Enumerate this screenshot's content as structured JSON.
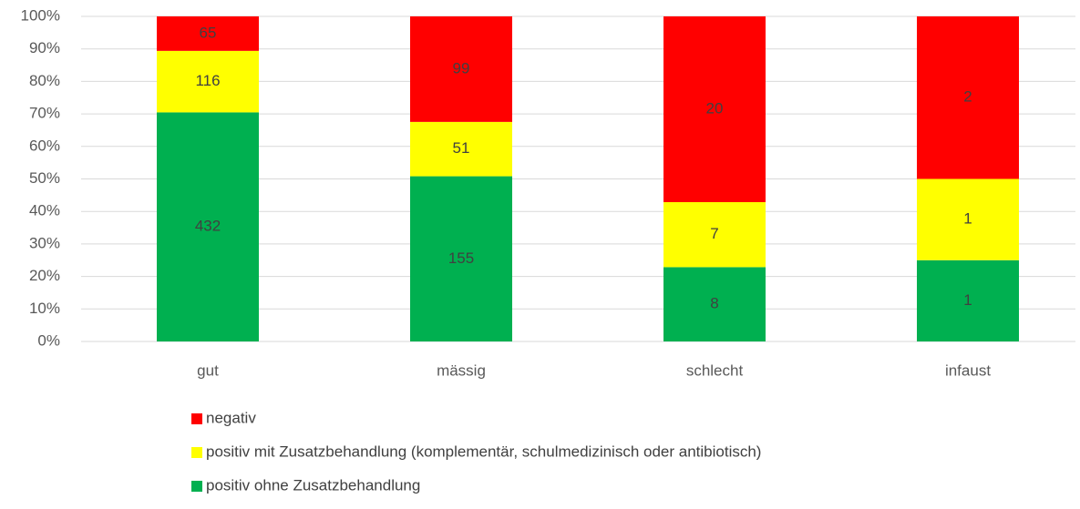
{
  "chart_data": {
    "type": "bar",
    "stacking": "percent",
    "categories": [
      "gut",
      "mässig",
      "schlecht",
      "infaust"
    ],
    "series": [
      {
        "name": "positiv ohne Zusatzbehandlung",
        "color": "#00b050",
        "values": [
          432,
          155,
          8,
          1
        ]
      },
      {
        "name": "positiv mit Zusatzbehandlung (komplementär, schulmedizinisch oder antibiotisch)",
        "color": "#ffff00",
        "values": [
          116,
          51,
          7,
          1
        ]
      },
      {
        "name": "negativ",
        "color": "#ff0000",
        "values": [
          65,
          99,
          20,
          2
        ]
      }
    ],
    "ylim": [
      0,
      100
    ],
    "yticks": [
      {
        "value": 0,
        "label": "0%"
      },
      {
        "value": 10,
        "label": "10%"
      },
      {
        "value": 20,
        "label": "20%"
      },
      {
        "value": 30,
        "label": "30%"
      },
      {
        "value": 40,
        "label": "40%"
      },
      {
        "value": 50,
        "label": "50%"
      },
      {
        "value": 60,
        "label": "60%"
      },
      {
        "value": 70,
        "label": "70%"
      },
      {
        "value": 80,
        "label": "80%"
      },
      {
        "value": 90,
        "label": "90%"
      },
      {
        "value": 100,
        "label": "100%"
      }
    ],
    "grid": true,
    "legend": "bottom"
  }
}
